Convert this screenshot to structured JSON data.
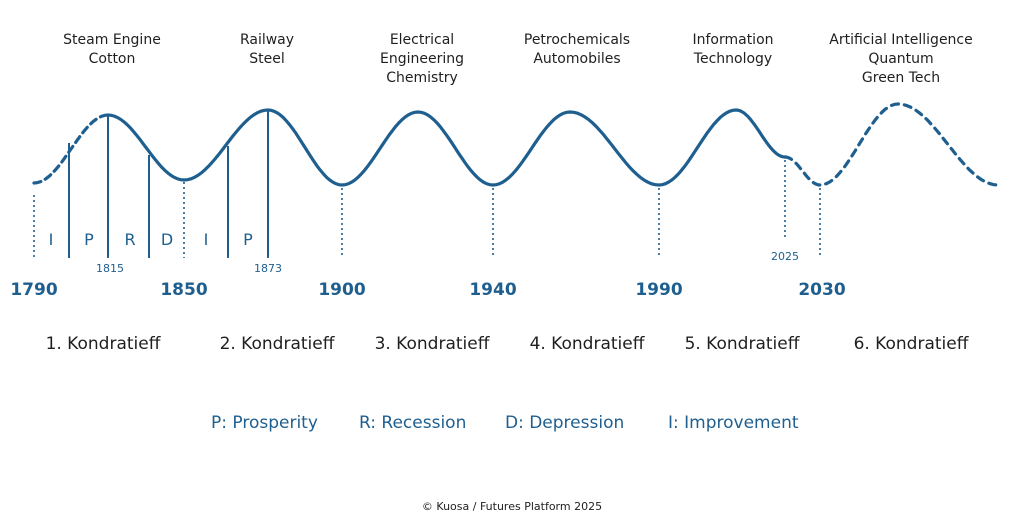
{
  "colors": {
    "wave": "#1f5f8f",
    "text": "#1f1f1f",
    "accent": "#1f5f8f"
  },
  "wave_labels": [
    {
      "lines": [
        "Steam Engine",
        "Cotton"
      ]
    },
    {
      "lines": [
        "Railway",
        "Steel"
      ]
    },
    {
      "lines": [
        "Electrical",
        "Engineering",
        "Chemistry"
      ]
    },
    {
      "lines": [
        "Petrochemicals",
        "Automobiles"
      ]
    },
    {
      "lines": [
        "Information",
        "Technology"
      ]
    },
    {
      "lines": [
        "Artificial Intelligence",
        "Quantum",
        "Green Tech"
      ]
    }
  ],
  "phase_letters": [
    "I",
    "P",
    "R",
    "D",
    "I",
    "P"
  ],
  "small_years": [
    "1815",
    "1873",
    "2025"
  ],
  "major_years": [
    "1790",
    "1850",
    "1900",
    "1940",
    "1990",
    "2030"
  ],
  "kondratieff_labels": [
    "1. Kondratieff",
    "2. Kondratieff",
    "3. Kondratieff",
    "4. Kondratieff",
    "5. Kondratieff",
    "6. Kondratieff"
  ],
  "legend": [
    "P: Prosperity",
    "R: Recession",
    "D: Depression",
    "I: Improvement"
  ],
  "footer": "© Kuosa / Futures Platform 2025"
}
